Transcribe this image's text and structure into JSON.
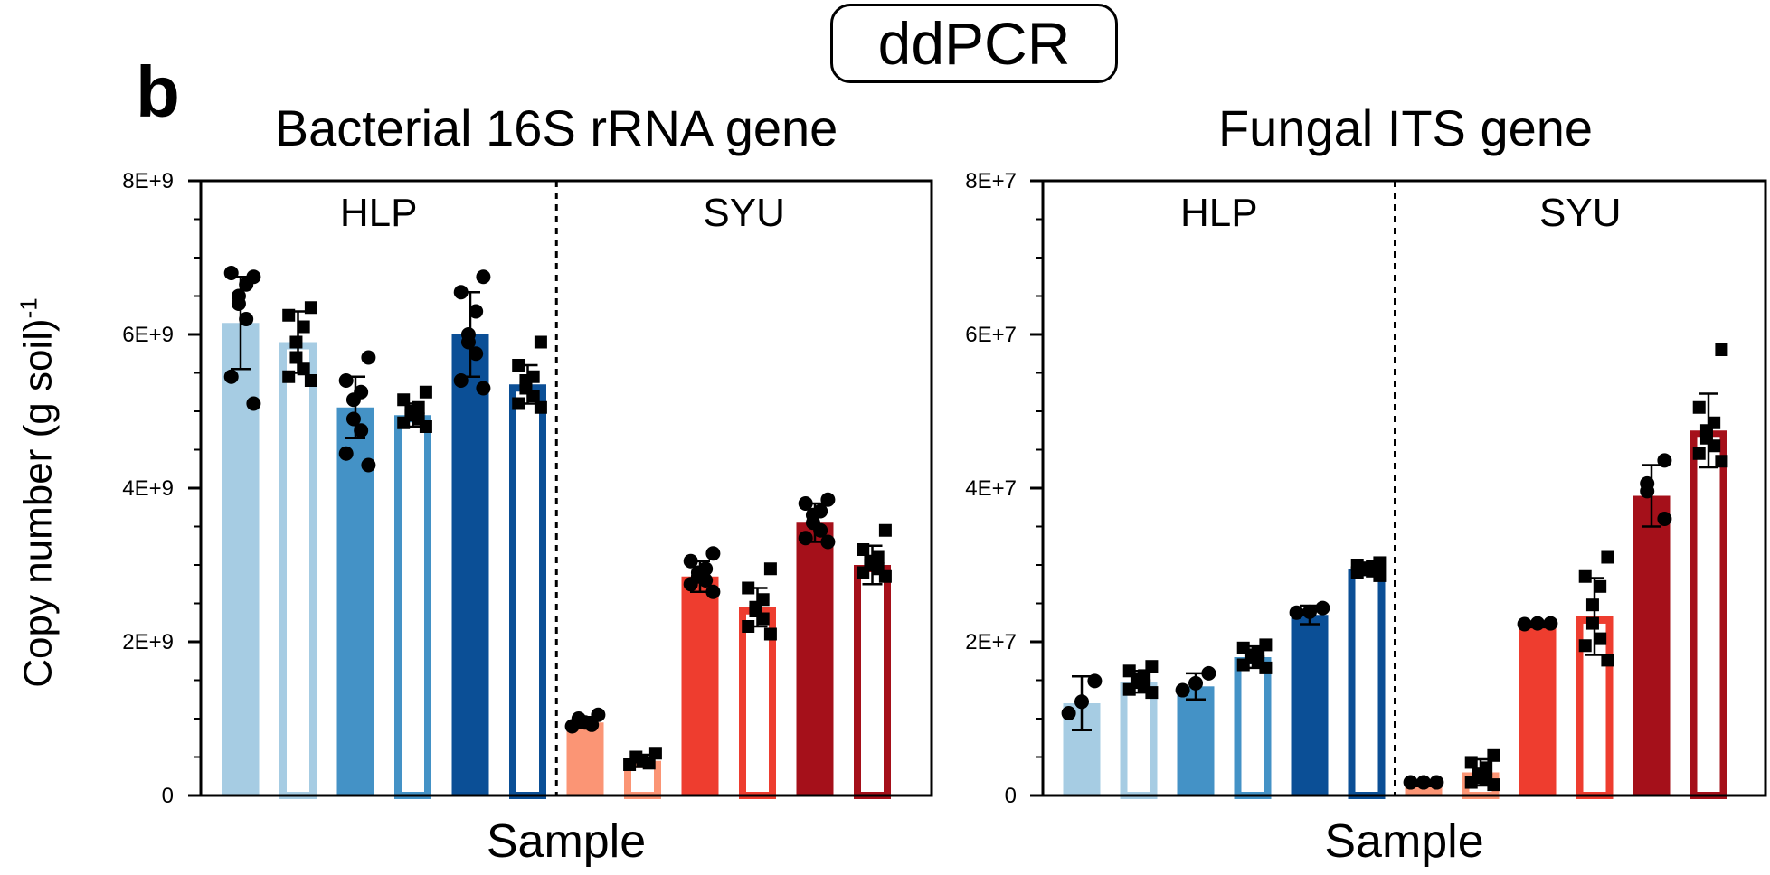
{
  "header": {
    "title": "ddPCR"
  },
  "panel_label": "b",
  "y_axis_label": {
    "main": "Copy number (g soil)",
    "superscript": "-1"
  },
  "colors": {
    "HLP": [
      "#a6cce3",
      "#a6cce3",
      "#4492c6",
      "#4492c6",
      "#0b4f96",
      "#0b4f96"
    ],
    "SYU": [
      "#fb9575",
      "#fb9575",
      "#ee3d2f",
      "#ee3d2f",
      "#a5101a",
      "#a5101a"
    ]
  },
  "chart_data": [
    {
      "type": "bar",
      "title": "Bacterial 16S rRNA gene",
      "xlabel": "Sample",
      "ylabel": "Copy number (g soil)-1",
      "ylim": [
        0,
        8000000000
      ],
      "yticks": [
        "0",
        "2E+9",
        "4E+9",
        "6E+9",
        "8E+9"
      ],
      "groups": [
        "HLP",
        "SYU"
      ],
      "bars": [
        {
          "group": "HLP",
          "fill": "solid",
          "value": 6150000000,
          "err": 600000000,
          "points": [
            6750000000,
            6800000000,
            6650000000,
            6500000000,
            6400000000,
            6200000000,
            5450000000,
            5100000000
          ]
        },
        {
          "group": "HLP",
          "fill": "hollow",
          "value": 5900000000,
          "err": 400000000,
          "points": [
            6350000000,
            6250000000,
            6100000000,
            5900000000,
            5700000000,
            5550000000,
            5450000000,
            5400000000
          ]
        },
        {
          "group": "HLP",
          "fill": "solid",
          "value": 5050000000,
          "err": 400000000,
          "points": [
            5700000000,
            5400000000,
            5250000000,
            5150000000,
            4900000000,
            4750000000,
            4450000000,
            4300000000
          ]
        },
        {
          "group": "HLP",
          "fill": "hollow",
          "value": 4950000000,
          "err": 150000000,
          "points": [
            5250000000,
            5150000000,
            5050000000,
            5000000000,
            4950000000,
            4900000000,
            4850000000,
            4800000000
          ]
        },
        {
          "group": "HLP",
          "fill": "solid",
          "value": 6000000000,
          "err": 550000000,
          "points": [
            6750000000,
            6550000000,
            6300000000,
            6000000000,
            5900000000,
            5750000000,
            5400000000,
            5300000000
          ]
        },
        {
          "group": "HLP",
          "fill": "hollow",
          "value": 5350000000,
          "err": 250000000,
          "points": [
            5900000000,
            5600000000,
            5450000000,
            5400000000,
            5300000000,
            5200000000,
            5100000000,
            5050000000
          ]
        },
        {
          "group": "SYU",
          "fill": "solid",
          "value": 950000000,
          "err": 70000000,
          "points": [
            1050000000,
            1000000000,
            950000000,
            920000000,
            900000000
          ]
        },
        {
          "group": "SYU",
          "fill": "hollow",
          "value": 450000000,
          "err": 80000000,
          "points": [
            550000000,
            500000000,
            450000000,
            420000000,
            400000000
          ]
        },
        {
          "group": "SYU",
          "fill": "solid",
          "value": 2850000000,
          "err": 200000000,
          "points": [
            3150000000,
            3050000000,
            2950000000,
            2900000000,
            2850000000,
            2800000000,
            2750000000,
            2650000000
          ]
        },
        {
          "group": "SYU",
          "fill": "hollow",
          "value": 2450000000,
          "err": 250000000,
          "points": [
            2950000000,
            2700000000,
            2550000000,
            2450000000,
            2400000000,
            2300000000,
            2200000000,
            2100000000
          ]
        },
        {
          "group": "SYU",
          "fill": "solid",
          "value": 3550000000,
          "err": 250000000,
          "points": [
            3850000000,
            3800000000,
            3700000000,
            3650000000,
            3550000000,
            3450000000,
            3350000000,
            3300000000
          ]
        },
        {
          "group": "SYU",
          "fill": "hollow",
          "value": 3000000000,
          "err": 250000000,
          "points": [
            3450000000,
            3200000000,
            3100000000,
            3050000000,
            3000000000,
            2950000000,
            2900000000,
            2850000000
          ]
        }
      ]
    },
    {
      "type": "bar",
      "title": "Fungal ITS gene",
      "xlabel": "Sample",
      "ylabel": "Copy number (g soil)-1",
      "ylim": [
        0,
        80000000
      ],
      "yticks": [
        "0",
        "2E+7",
        "4E+7",
        "6E+7",
        "8E+7"
      ],
      "groups": [
        "HLP",
        "SYU"
      ],
      "bars": [
        {
          "group": "HLP",
          "fill": "solid",
          "value": 12000000,
          "err": 3500000,
          "points": [
            14900000,
            12200000,
            10700000
          ]
        },
        {
          "group": "HLP",
          "fill": "hollow",
          "value": 14800000,
          "err": 1400000,
          "points": [
            16800000,
            16200000,
            15600000,
            15100000,
            14700000,
            14300000,
            13800000,
            13400000
          ]
        },
        {
          "group": "HLP",
          "fill": "solid",
          "value": 14200000,
          "err": 1700000,
          "points": [
            15900000,
            14600000,
            13700000
          ]
        },
        {
          "group": "HLP",
          "fill": "hollow",
          "value": 18000000,
          "err": 1400000,
          "points": [
            19600000,
            19200000,
            18700000,
            18300000,
            17900000,
            17400000,
            17000000,
            16600000
          ]
        },
        {
          "group": "HLP",
          "fill": "solid",
          "value": 23500000,
          "err": 1200000,
          "points": [
            24400000,
            23900000,
            23800000
          ]
        },
        {
          "group": "HLP",
          "fill": "hollow",
          "value": 29500000,
          "err": 800000,
          "points": [
            30300000,
            30000000,
            29800000,
            29600000,
            29400000,
            29200000,
            29000000,
            28600000
          ]
        },
        {
          "group": "SYU",
          "fill": "solid",
          "value": 1500000,
          "err": 300000,
          "points": [
            1700000,
            1700000,
            1700000
          ]
        },
        {
          "group": "SYU",
          "fill": "hollow",
          "value": 3000000,
          "err": 1700000,
          "points": [
            5200000,
            4300000,
            3600000,
            2800000,
            2300000,
            2000000,
            1700000,
            1400000
          ]
        },
        {
          "group": "SYU",
          "fill": "solid",
          "value": 22200000,
          "err": 300000,
          "points": [
            22400000,
            22400000,
            22300000
          ]
        },
        {
          "group": "SYU",
          "fill": "hollow",
          "value": 23300000,
          "err": 5000000,
          "points": [
            31000000,
            28500000,
            27200000,
            24800000,
            22400000,
            20400000,
            19500000,
            17600000
          ]
        },
        {
          "group": "SYU",
          "fill": "solid",
          "value": 39000000,
          "err": 4000000,
          "points": [
            43600000,
            40600000,
            39600000,
            36000000
          ]
        },
        {
          "group": "SYU",
          "fill": "hollow",
          "value": 47500000,
          "err": 4800000,
          "points": [
            58000000,
            50500000,
            48500000,
            47500000,
            46500000,
            45500000,
            44500000,
            43500000
          ]
        }
      ]
    }
  ]
}
